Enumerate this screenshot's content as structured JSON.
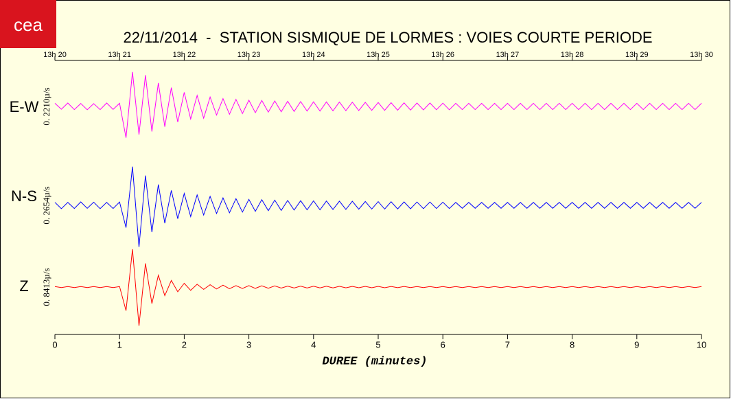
{
  "logo": "cea",
  "chart_data": {
    "type": "line",
    "title": "22/11/2014  -  STATION SISMIQUE DE LORMES : VOIES COURTE PERIODE",
    "x_label": "DUREE (minutes)",
    "xlim": [
      0,
      10
    ],
    "xticks": [
      0,
      1,
      2,
      3,
      4,
      5,
      6,
      7,
      8,
      9,
      10
    ],
    "top_xticks": [
      {
        "value": 0,
        "label": "13h 20"
      },
      {
        "value": 1,
        "label": "13h 21"
      },
      {
        "value": 2,
        "label": "13h 22"
      },
      {
        "value": 3,
        "label": "13h 23"
      },
      {
        "value": 4,
        "label": "13h 24"
      },
      {
        "value": 5,
        "label": "13h 25"
      },
      {
        "value": 6,
        "label": "13h 26"
      },
      {
        "value": 7,
        "label": "13h 27"
      },
      {
        "value": 8,
        "label": "13h 28"
      },
      {
        "value": 9,
        "label": "13h 29"
      },
      {
        "value": 10,
        "label": "13h 30"
      }
    ],
    "x": [
      0,
      0.1,
      0.2,
      0.3,
      0.4,
      0.5,
      0.6,
      0.7,
      0.8,
      0.9,
      1,
      1.1,
      1.2,
      1.3,
      1.4,
      1.5,
      1.6,
      1.7,
      1.8,
      1.9,
      2,
      2.1,
      2.2,
      2.3,
      2.4,
      2.5,
      2.6,
      2.7,
      2.8,
      2.9,
      3,
      3.1,
      3.2,
      3.3,
      3.4,
      3.5,
      3.6,
      3.7,
      3.8,
      3.9,
      4,
      4.1,
      4.2,
      4.3,
      4.4,
      4.5,
      4.6,
      4.7,
      4.8,
      4.9,
      5,
      5.1,
      5.2,
      5.3,
      5.4,
      5.5,
      5.6,
      5.7,
      5.8,
      5.9,
      6,
      6.1,
      6.2,
      6.3,
      6.4,
      6.5,
      6.6,
      6.7,
      6.8,
      6.9,
      7,
      7.1,
      7.2,
      7.3,
      7.4,
      7.5,
      7.6,
      7.7,
      7.8,
      7.9,
      8,
      8.1,
      8.2,
      8.3,
      8.4,
      8.5,
      8.6,
      8.7,
      8.8,
      8.9,
      9,
      9.1,
      9.2,
      9.3,
      9.4,
      9.5,
      9.6,
      9.7,
      9.8,
      9.9,
      10
    ],
    "series": [
      {
        "name": "E-W",
        "color": "#ff00ff",
        "scale_label": "0. 2210µ/s",
        "ylim": [
          -0.25,
          0.25
        ],
        "values": [
          0.02,
          -0.018,
          0.022,
          -0.02,
          0.019,
          -0.021,
          0.018,
          -0.02,
          0.022,
          -0.019,
          0.02,
          -0.2,
          0.22,
          -0.18,
          0.2,
          -0.16,
          0.15,
          -0.13,
          0.12,
          -0.1,
          0.09,
          -0.08,
          0.07,
          -0.075,
          0.06,
          -0.055,
          0.05,
          -0.05,
          0.045,
          -0.045,
          0.04,
          -0.04,
          0.038,
          -0.036,
          0.035,
          -0.034,
          0.033,
          -0.032,
          0.031,
          -0.03,
          0.03,
          -0.03,
          0.029,
          -0.028,
          0.028,
          -0.027,
          0.027,
          -0.026,
          0.026,
          -0.025,
          0.025,
          -0.025,
          0.024,
          -0.024,
          0.023,
          -0.023,
          0.022,
          -0.022,
          0.022,
          -0.021,
          0.021,
          -0.021,
          0.02,
          -0.02,
          0.02,
          -0.02,
          0.02,
          -0.02,
          0.02,
          -0.02,
          0.02,
          -0.02,
          0.02,
          -0.02,
          0.02,
          -0.02,
          0.02,
          -0.02,
          0.02,
          -0.02,
          0.02,
          -0.02,
          0.02,
          -0.02,
          0.02,
          -0.02,
          0.02,
          -0.02,
          0.02,
          -0.02,
          0.02,
          -0.02,
          0.02,
          -0.02,
          0.02,
          -0.02,
          0.02,
          -0.02,
          0.02,
          -0.02,
          0.02
        ]
      },
      {
        "name": "N-S",
        "color": "#0000ff",
        "scale_label": "0. 2654µ/s",
        "ylim": [
          -0.3,
          0.3
        ],
        "values": [
          0.02,
          -0.022,
          0.02,
          -0.021,
          0.023,
          -0.02,
          0.021,
          -0.022,
          0.02,
          -0.021,
          0.022,
          -0.15,
          0.26,
          -0.28,
          0.2,
          -0.18,
          0.14,
          -0.12,
          0.1,
          -0.09,
          0.08,
          -0.075,
          0.07,
          -0.065,
          0.06,
          -0.055,
          0.05,
          -0.05,
          0.045,
          -0.045,
          0.04,
          -0.04,
          0.038,
          -0.036,
          0.035,
          -0.034,
          0.033,
          -0.032,
          0.031,
          -0.03,
          0.03,
          -0.03,
          0.029,
          -0.028,
          0.028,
          -0.027,
          0.027,
          -0.026,
          0.026,
          -0.025,
          0.025,
          -0.025,
          0.024,
          -0.024,
          0.023,
          -0.023,
          0.022,
          -0.022,
          0.022,
          -0.021,
          0.021,
          -0.021,
          0.02,
          -0.02,
          0.02,
          -0.02,
          0.02,
          -0.02,
          0.02,
          -0.02,
          0.02,
          -0.02,
          0.02,
          -0.02,
          0.02,
          -0.02,
          0.02,
          -0.02,
          0.02,
          -0.02,
          0.02,
          -0.02,
          0.02,
          -0.02,
          0.02,
          -0.02,
          0.02,
          -0.02,
          0.02,
          -0.02,
          0.02,
          -0.02,
          0.02,
          -0.02,
          0.02,
          -0.02,
          0.02,
          -0.02,
          0.02,
          -0.02,
          0.02
        ]
      },
      {
        "name": "Z",
        "color": "#ff0000",
        "scale_label": "0. 8413µ/s",
        "ylim": [
          -0.9,
          0.9
        ],
        "values": [
          0.01,
          -0.01,
          0.01,
          -0.01,
          0.01,
          -0.01,
          0.01,
          -0.01,
          0.01,
          -0.01,
          0.01,
          -0.5,
          0.8,
          -0.82,
          0.5,
          -0.35,
          0.25,
          -0.18,
          0.14,
          -0.1,
          0.08,
          -0.07,
          0.06,
          -0.05,
          0.05,
          -0.04,
          0.04,
          -0.035,
          0.03,
          -0.03,
          0.03,
          -0.028,
          0.026,
          -0.025,
          0.024,
          -0.022,
          0.021,
          -0.02,
          0.02,
          -0.019,
          0.018,
          -0.018,
          0.017,
          -0.017,
          0.016,
          -0.016,
          0.015,
          -0.015,
          0.015,
          -0.014,
          0.014,
          -0.014,
          0.013,
          -0.013,
          0.013,
          -0.012,
          0.012,
          -0.012,
          0.012,
          -0.012,
          0.012,
          -0.012,
          0.012,
          -0.012,
          0.012,
          -0.012,
          0.012,
          -0.012,
          0.012,
          -0.012,
          0.012,
          -0.012,
          0.012,
          -0.012,
          0.012,
          -0.012,
          0.012,
          -0.012,
          0.012,
          -0.012,
          0.012,
          -0.012,
          0.012,
          -0.012,
          0.012,
          -0.012,
          0.012,
          -0.012,
          0.012,
          -0.012,
          0.012,
          -0.012,
          0.012,
          -0.012,
          0.012,
          -0.012,
          0.012,
          -0.012,
          0.012,
          -0.012,
          0.012
        ]
      }
    ]
  }
}
